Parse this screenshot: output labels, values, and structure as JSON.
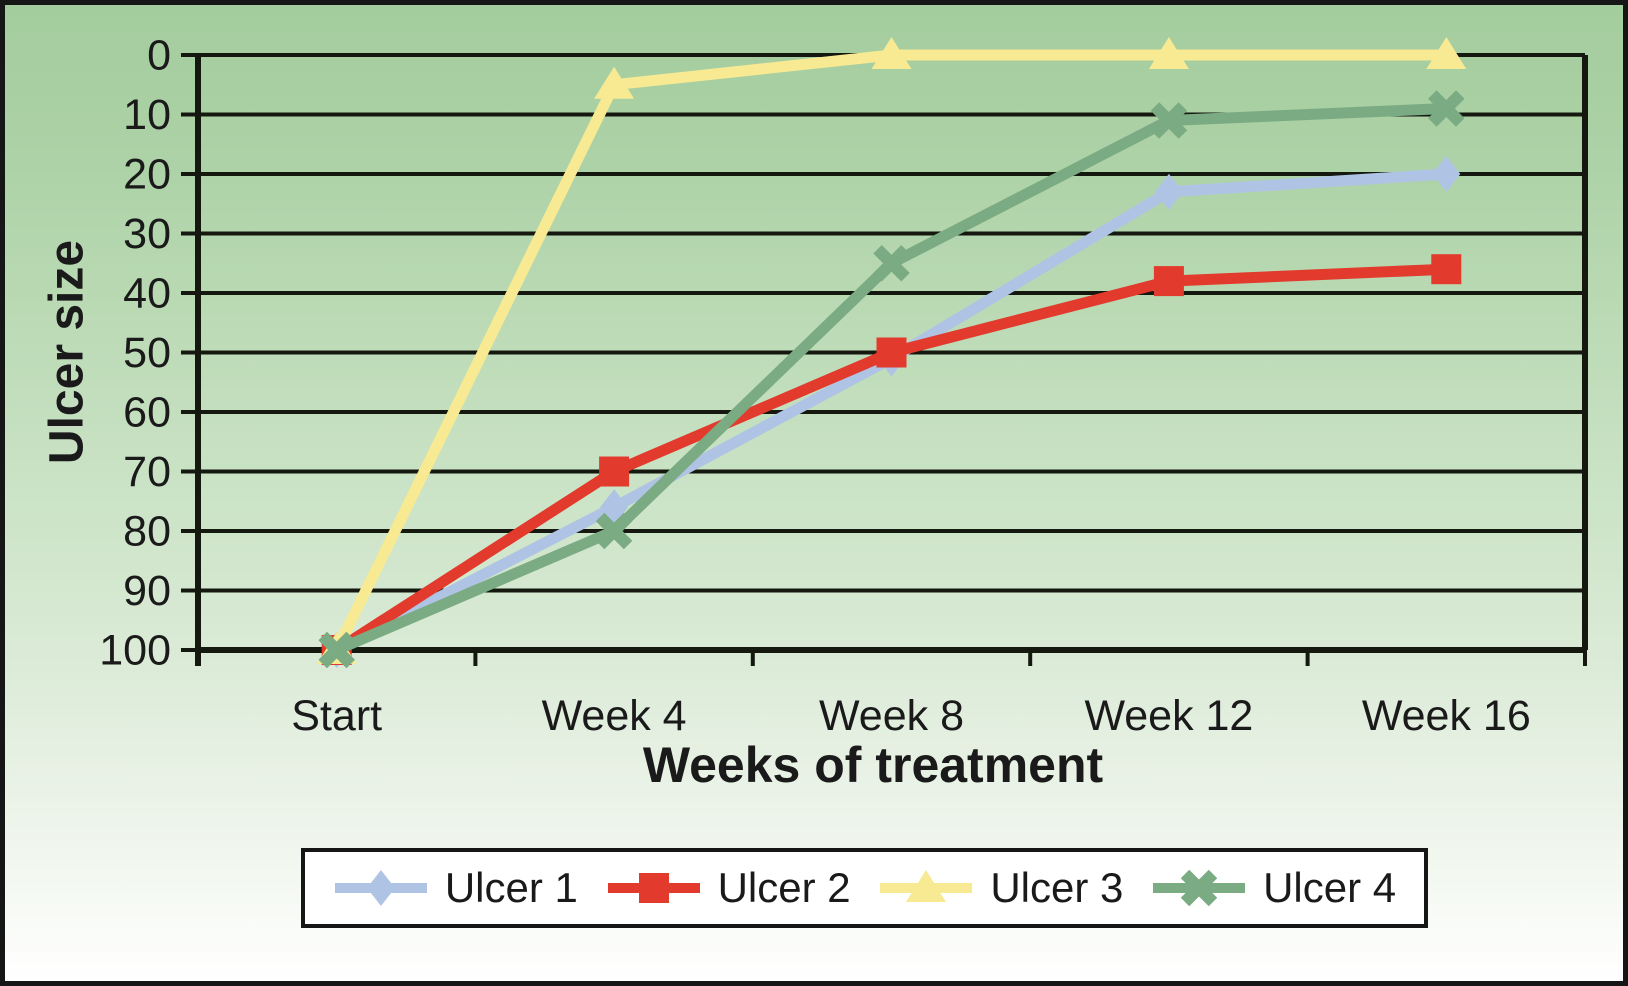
{
  "figure": {
    "border_color": "#161616",
    "legend_border_color": "#161616",
    "legend_background": "#ffffff",
    "background_gradient": [
      "#a4cd9e",
      "#cbe3c6",
      "#ffffff"
    ],
    "grid_color": "#14180f",
    "text_color": "#1a1a1a"
  },
  "chart_data": {
    "type": "line",
    "title": "",
    "xlabel": "Weeks of treatment",
    "ylabel": "Ulcer size",
    "categories": [
      "Start",
      "Week 4",
      "Week 8",
      "Week 12",
      "Week 16"
    ],
    "y_ticks": [
      0,
      10,
      20,
      30,
      40,
      50,
      60,
      70,
      80,
      90,
      100
    ],
    "ylim": [
      0,
      100
    ],
    "y_axis_inverted": true,
    "grid": "horizontal",
    "legend_position": "bottom",
    "series": [
      {
        "name": "Ulcer 1",
        "marker": "diamond",
        "color": "#afc4e4",
        "values": [
          100,
          76,
          51,
          23,
          20
        ]
      },
      {
        "name": "Ulcer 2",
        "marker": "square",
        "color": "#e23a2c",
        "values": [
          100,
          70,
          50,
          38,
          36
        ]
      },
      {
        "name": "Ulcer 3",
        "marker": "triangle",
        "color": "#f7ea92",
        "values": [
          100,
          5,
          0,
          0,
          0
        ]
      },
      {
        "name": "Ulcer 4",
        "marker": "x",
        "color": "#7bab83",
        "values": [
          100,
          80,
          35,
          11,
          9
        ]
      }
    ]
  }
}
